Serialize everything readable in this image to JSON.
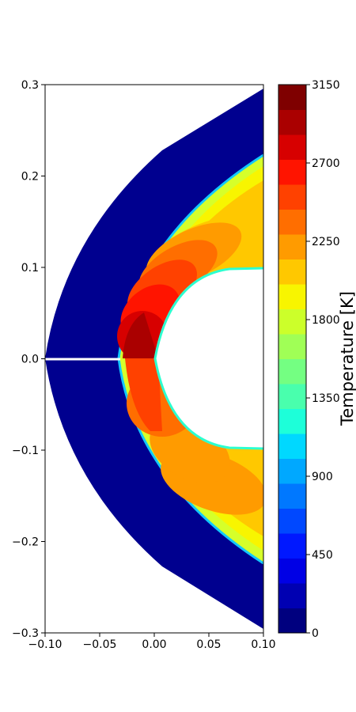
{
  "chart_data": {
    "type": "heatmap",
    "title": "",
    "xlabel": "",
    "ylabel": "",
    "xlim": [
      -0.1,
      0.1
    ],
    "ylim": [
      -0.3,
      0.3
    ],
    "x_ticks": [
      "−0.10",
      "−0.05",
      "0.00",
      "0.05",
      "0.10"
    ],
    "y_ticks": [
      "0.3",
      "0.2",
      "0.1",
      "0.0",
      "−0.1",
      "−0.2",
      "−0.3"
    ],
    "colorbar": {
      "label": "Temperature [K]",
      "min": 0,
      "max": 3150,
      "ticks": [
        "3150",
        "2700",
        "2250",
        "1800",
        "1350",
        "900",
        "450",
        "0"
      ],
      "levels": 22,
      "colors": [
        "#00007f",
        "#0000b2",
        "#0000e5",
        "#0018ff",
        "#0048ff",
        "#0078ff",
        "#00a8ff",
        "#00d8ff",
        "#1dffd9",
        "#49ffad",
        "#74ff82",
        "#a0ff56",
        "#ccff2a",
        "#f8f500",
        "#ffc800",
        "#ff9b00",
        "#ff6e00",
        "#ff4100",
        "#ff1400",
        "#d70000",
        "#aa0000",
        "#7f0000"
      ]
    },
    "grid": false,
    "legend": "none"
  }
}
